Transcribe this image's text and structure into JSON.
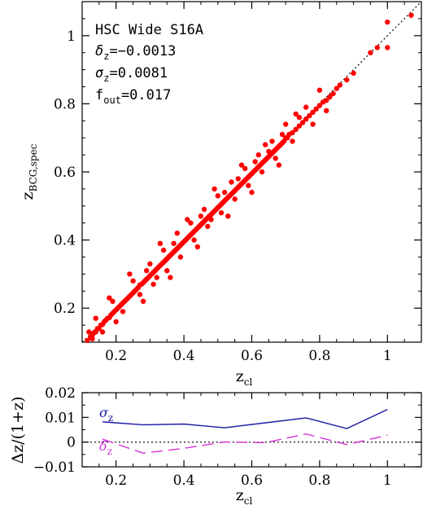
{
  "chart_data": [
    {
      "type": "scatter",
      "xlabel_main": "z",
      "xlabel_sub": "cl",
      "ylabel_main": "z",
      "ylabel_sub": "BCG,spec",
      "xlim": [
        0.1,
        1.1
      ],
      "ylim": [
        0.1,
        1.1
      ],
      "xticks": [
        0.2,
        0.4,
        0.6,
        0.8,
        1
      ],
      "xtick_labels": [
        "0.2",
        "0.4",
        "0.6",
        "0.8",
        "1"
      ],
      "yticks": [
        0.2,
        0.4,
        0.6,
        0.8,
        1
      ],
      "ytick_labels": [
        "0.2",
        "0.4",
        "0.6",
        "0.8",
        "1"
      ],
      "reference_line": "y = x (dotted)",
      "marker_color": "#ff0000",
      "annotations": {
        "survey": "HSC Wide S16A",
        "delta_sym": "δ",
        "delta_sub": "z",
        "delta_val": "=−0.0013",
        "sigma_sym": "σ",
        "sigma_sub": "z",
        "sigma_val": "=0.0081",
        "fout_sym": "f",
        "fout_sub": "out",
        "fout_val": "=0.017"
      },
      "points": [
        [
          0.115,
          0.105
        ],
        [
          0.125,
          0.115
        ],
        [
          0.13,
          0.12
        ],
        [
          0.135,
          0.128
        ],
        [
          0.14,
          0.13
        ],
        [
          0.145,
          0.14
        ],
        [
          0.15,
          0.14
        ],
        [
          0.155,
          0.15
        ],
        [
          0.16,
          0.152
        ],
        [
          0.165,
          0.16
        ],
        [
          0.17,
          0.165
        ],
        [
          0.175,
          0.17
        ],
        [
          0.18,
          0.172
        ],
        [
          0.185,
          0.18
        ],
        [
          0.19,
          0.185
        ],
        [
          0.195,
          0.19
        ],
        [
          0.2,
          0.195
        ],
        [
          0.205,
          0.2
        ],
        [
          0.21,
          0.205
        ],
        [
          0.215,
          0.21
        ],
        [
          0.22,
          0.215
        ],
        [
          0.225,
          0.22
        ],
        [
          0.23,
          0.225
        ],
        [
          0.235,
          0.23
        ],
        [
          0.24,
          0.235
        ],
        [
          0.245,
          0.24
        ],
        [
          0.25,
          0.245
        ],
        [
          0.255,
          0.25
        ],
        [
          0.26,
          0.255
        ],
        [
          0.265,
          0.26
        ],
        [
          0.27,
          0.268
        ],
        [
          0.275,
          0.27
        ],
        [
          0.28,
          0.275
        ],
        [
          0.285,
          0.28
        ],
        [
          0.29,
          0.285
        ],
        [
          0.295,
          0.29
        ],
        [
          0.3,
          0.295
        ],
        [
          0.305,
          0.3
        ],
        [
          0.31,
          0.305
        ],
        [
          0.315,
          0.31
        ],
        [
          0.32,
          0.315
        ],
        [
          0.325,
          0.32
        ],
        [
          0.33,
          0.325
        ],
        [
          0.335,
          0.33
        ],
        [
          0.34,
          0.335
        ],
        [
          0.345,
          0.34
        ],
        [
          0.35,
          0.345
        ],
        [
          0.355,
          0.35
        ],
        [
          0.36,
          0.355
        ],
        [
          0.365,
          0.36
        ],
        [
          0.37,
          0.365
        ],
        [
          0.375,
          0.37
        ],
        [
          0.38,
          0.375
        ],
        [
          0.385,
          0.38
        ],
        [
          0.39,
          0.385
        ],
        [
          0.395,
          0.39
        ],
        [
          0.4,
          0.395
        ],
        [
          0.405,
          0.4
        ],
        [
          0.41,
          0.405
        ],
        [
          0.415,
          0.41
        ],
        [
          0.42,
          0.415
        ],
        [
          0.425,
          0.42
        ],
        [
          0.43,
          0.425
        ],
        [
          0.435,
          0.43
        ],
        [
          0.44,
          0.435
        ],
        [
          0.445,
          0.44
        ],
        [
          0.45,
          0.445
        ],
        [
          0.455,
          0.45
        ],
        [
          0.46,
          0.455
        ],
        [
          0.465,
          0.46
        ],
        [
          0.47,
          0.465
        ],
        [
          0.475,
          0.47
        ],
        [
          0.48,
          0.475
        ],
        [
          0.485,
          0.48
        ],
        [
          0.49,
          0.485
        ],
        [
          0.495,
          0.49
        ],
        [
          0.5,
          0.495
        ],
        [
          0.505,
          0.5
        ],
        [
          0.51,
          0.505
        ],
        [
          0.515,
          0.51
        ],
        [
          0.52,
          0.515
        ],
        [
          0.525,
          0.52
        ],
        [
          0.53,
          0.525
        ],
        [
          0.535,
          0.53
        ],
        [
          0.54,
          0.535
        ],
        [
          0.545,
          0.54
        ],
        [
          0.55,
          0.545
        ],
        [
          0.555,
          0.55
        ],
        [
          0.56,
          0.555
        ],
        [
          0.565,
          0.56
        ],
        [
          0.57,
          0.565
        ],
        [
          0.575,
          0.57
        ],
        [
          0.58,
          0.575
        ],
        [
          0.585,
          0.58
        ],
        [
          0.59,
          0.585
        ],
        [
          0.595,
          0.59
        ],
        [
          0.6,
          0.595
        ],
        [
          0.605,
          0.6
        ],
        [
          0.61,
          0.605
        ],
        [
          0.615,
          0.61
        ],
        [
          0.62,
          0.615
        ],
        [
          0.625,
          0.62
        ],
        [
          0.63,
          0.625
        ],
        [
          0.635,
          0.63
        ],
        [
          0.64,
          0.635
        ],
        [
          0.645,
          0.64
        ],
        [
          0.65,
          0.645
        ],
        [
          0.655,
          0.65
        ],
        [
          0.66,
          0.655
        ],
        [
          0.665,
          0.66
        ],
        [
          0.67,
          0.665
        ],
        [
          0.675,
          0.67
        ],
        [
          0.68,
          0.675
        ],
        [
          0.685,
          0.68
        ],
        [
          0.69,
          0.685
        ],
        [
          0.695,
          0.69
        ],
        [
          0.7,
          0.7
        ],
        [
          0.705,
          0.7
        ],
        [
          0.71,
          0.71
        ],
        [
          0.72,
          0.715
        ],
        [
          0.73,
          0.725
        ],
        [
          0.74,
          0.735
        ],
        [
          0.75,
          0.745
        ],
        [
          0.76,
          0.755
        ],
        [
          0.77,
          0.765
        ],
        [
          0.78,
          0.775
        ],
        [
          0.79,
          0.785
        ],
        [
          0.8,
          0.795
        ],
        [
          0.81,
          0.805
        ],
        [
          0.82,
          0.81
        ],
        [
          0.83,
          0.82
        ],
        [
          0.84,
          0.83
        ],
        [
          0.85,
          0.845
        ],
        [
          0.86,
          0.855
        ],
        [
          0.88,
          0.87
        ],
        [
          0.9,
          0.89
        ],
        [
          0.95,
          0.95
        ],
        [
          0.97,
          0.965
        ],
        [
          1.0,
          0.965
        ],
        [
          1.0,
          1.04
        ],
        [
          1.07,
          1.06
        ],
        [
          0.14,
          0.17
        ],
        [
          0.16,
          0.13
        ],
        [
          0.19,
          0.22
        ],
        [
          0.22,
          0.19
        ],
        [
          0.25,
          0.28
        ],
        [
          0.27,
          0.24
        ],
        [
          0.3,
          0.33
        ],
        [
          0.31,
          0.27
        ],
        [
          0.34,
          0.37
        ],
        [
          0.35,
          0.31
        ],
        [
          0.38,
          0.42
        ],
        [
          0.39,
          0.35
        ],
        [
          0.42,
          0.45
        ],
        [
          0.43,
          0.4
        ],
        [
          0.46,
          0.49
        ],
        [
          0.47,
          0.44
        ],
        [
          0.5,
          0.53
        ],
        [
          0.51,
          0.48
        ],
        [
          0.54,
          0.57
        ],
        [
          0.55,
          0.52
        ],
        [
          0.58,
          0.61
        ],
        [
          0.59,
          0.56
        ],
        [
          0.62,
          0.65
        ],
        [
          0.63,
          0.6
        ],
        [
          0.66,
          0.69
        ],
        [
          0.67,
          0.64
        ],
        [
          0.7,
          0.74
        ],
        [
          0.72,
          0.69
        ],
        [
          0.76,
          0.79
        ],
        [
          0.78,
          0.74
        ],
        [
          0.18,
          0.23
        ],
        [
          0.2,
          0.16
        ],
        [
          0.24,
          0.3
        ],
        [
          0.28,
          0.22
        ],
        [
          0.33,
          0.39
        ],
        [
          0.36,
          0.29
        ],
        [
          0.41,
          0.46
        ],
        [
          0.44,
          0.38
        ],
        [
          0.49,
          0.55
        ],
        [
          0.53,
          0.47
        ],
        [
          0.57,
          0.62
        ],
        [
          0.6,
          0.54
        ],
        [
          0.64,
          0.68
        ],
        [
          0.68,
          0.62
        ],
        [
          0.73,
          0.77
        ],
        [
          0.8,
          0.84
        ],
        [
          0.82,
          0.78
        ],
        [
          0.12,
          0.13
        ],
        [
          0.13,
          0.11
        ],
        [
          0.29,
          0.31
        ],
        [
          0.32,
          0.29
        ],
        [
          0.37,
          0.39
        ],
        [
          0.45,
          0.47
        ],
        [
          0.48,
          0.46
        ],
        [
          0.52,
          0.54
        ],
        [
          0.56,
          0.58
        ],
        [
          0.61,
          0.63
        ],
        [
          0.65,
          0.66
        ],
        [
          0.69,
          0.71
        ],
        [
          0.74,
          0.76
        ]
      ]
    },
    {
      "type": "line",
      "xlabel_main": "z",
      "xlabel_sub": "cl",
      "ylabel": "Δz/(1+z)",
      "xlim": [
        0.1,
        1.1
      ],
      "ylim": [
        -0.01,
        0.02
      ],
      "xticks": [
        0.2,
        0.4,
        0.6,
        0.8,
        1
      ],
      "xtick_labels": [
        "0.2",
        "0.4",
        "0.6",
        "0.8",
        "1"
      ],
      "yticks": [
        -0.01,
        0,
        0.01,
        0.02
      ],
      "ytick_labels": [
        "−0.01",
        "0",
        "0.01",
        "0.02"
      ],
      "x": [
        0.16,
        0.28,
        0.4,
        0.52,
        0.64,
        0.76,
        0.88,
        1.0
      ],
      "series": [
        {
          "name_sym": "σ",
          "name_sub": "z",
          "color": "#1a1aa6",
          "style": "solid",
          "values": [
            0.0082,
            0.007,
            0.0073,
            0.0058,
            0.0078,
            0.0098,
            0.0055,
            0.0132
          ]
        },
        {
          "name_sym": "δ",
          "name_sub": "z",
          "color": "#d633d6",
          "style": "dashed",
          "values": [
            0.0012,
            -0.0045,
            -0.0025,
            0.0001,
            -0.0002,
            0.0033,
            -0.001,
            0.0028
          ]
        }
      ]
    }
  ]
}
